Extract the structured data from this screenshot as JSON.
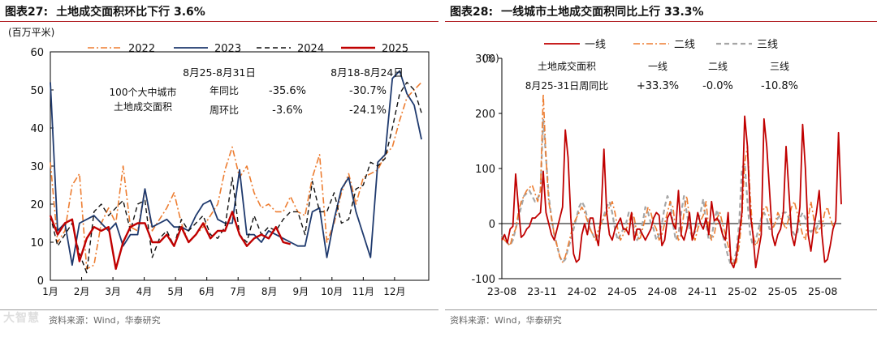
{
  "left": {
    "figure_number": "图表27:",
    "figure_title": "土地成交面积环比下行 3.6%",
    "source": "资料来源：Wind，华泰研究",
    "chart_data": {
      "type": "line",
      "ylabel": "(百万平米)",
      "ylim": [
        0,
        60
      ],
      "yticks": [
        0,
        10,
        20,
        30,
        40,
        50,
        60
      ],
      "xlim": [
        0,
        52
      ],
      "month_labels": [
        "1月",
        "2月",
        "3月",
        "4月",
        "5月",
        "6月",
        "7月",
        "8月",
        "9月",
        "10月",
        "11月",
        "12月"
      ],
      "month_positions": [
        0,
        4.3,
        8.6,
        12.9,
        17.2,
        21.5,
        25.8,
        30.1,
        34.4,
        38.7,
        43,
        47.3
      ],
      "legend": "top",
      "series": [
        {
          "name": "2022",
          "color": "#ED7D31",
          "dash": "dashdot",
          "width": 1.6,
          "x": [
            0,
            1,
            2,
            3,
            4,
            5,
            6,
            7,
            8,
            9,
            10,
            11,
            12,
            13,
            14,
            15,
            16,
            17,
            18,
            19,
            20,
            21,
            22,
            23,
            24,
            25,
            26,
            27,
            28,
            29,
            30,
            31,
            32,
            33,
            34,
            35,
            36,
            37,
            38,
            39,
            40,
            41,
            42,
            43,
            44,
            45,
            46,
            47,
            48,
            49,
            50,
            51
          ],
          "values": [
            31,
            10,
            13,
            25,
            28,
            3,
            4,
            15,
            19,
            15,
            30,
            14,
            13,
            24,
            13,
            16,
            19,
            23,
            15,
            10,
            12,
            14,
            17,
            20,
            29,
            35,
            27,
            30,
            23,
            19,
            20,
            18,
            18,
            22,
            18,
            17,
            27,
            33,
            10,
            15,
            23,
            28,
            20,
            27,
            28,
            29,
            33,
            35,
            42,
            48,
            50,
            52
          ]
        },
        {
          "name": "2023",
          "color": "#1F3A6E",
          "dash": "solid",
          "width": 1.8,
          "x": [
            0,
            1,
            2,
            3,
            4,
            5,
            6,
            7,
            8,
            9,
            10,
            11,
            12,
            13,
            14,
            15,
            16,
            17,
            18,
            19,
            20,
            21,
            22,
            23,
            24,
            25,
            26,
            27,
            28,
            29,
            30,
            31,
            32,
            33,
            34,
            35,
            36,
            37,
            38,
            39,
            40,
            41,
            42,
            43,
            44,
            45,
            46,
            47,
            48,
            49,
            50,
            51
          ],
          "values": [
            52,
            13,
            15,
            4,
            15,
            16,
            17,
            15,
            13,
            15,
            9,
            12,
            12,
            24,
            14,
            15,
            16,
            14,
            14,
            13,
            17,
            20,
            21,
            16,
            15,
            15,
            29,
            12,
            12,
            10,
            13,
            12,
            11,
            10,
            9,
            9,
            18,
            19,
            6,
            16,
            24,
            27,
            18,
            12,
            6,
            31,
            33,
            53,
            55,
            49,
            46,
            37
          ]
        },
        {
          "name": "2024",
          "color": "#111111",
          "dash": "dashed",
          "width": 1.4,
          "x": [
            0,
            1,
            2,
            3,
            4,
            5,
            6,
            7,
            8,
            9,
            10,
            11,
            12,
            13,
            14,
            15,
            16,
            17,
            18,
            19,
            20,
            21,
            22,
            23,
            24,
            25,
            26,
            27,
            28,
            29,
            30,
            31,
            32,
            33,
            34,
            35,
            36,
            37,
            38,
            39,
            40,
            41,
            42,
            43,
            44,
            45,
            46,
            47,
            48,
            49,
            50,
            51
          ],
          "values": [
            17,
            9,
            12,
            15,
            7,
            2,
            18,
            20,
            17,
            19,
            21,
            13,
            20,
            21,
            6,
            11,
            13,
            9,
            16,
            13,
            15,
            17,
            12,
            11,
            14,
            27,
            12,
            10,
            17,
            12,
            14,
            13,
            16,
            18,
            18,
            12,
            26,
            18,
            18,
            23,
            15,
            16,
            24,
            25,
            31,
            30,
            32,
            40,
            49,
            52,
            50,
            44
          ]
        },
        {
          "name": "2025",
          "color": "#C00000",
          "dash": "solid",
          "width": 2.4,
          "x": [
            0,
            1,
            2,
            3,
            4,
            5,
            6,
            7,
            8,
            9,
            10,
            11,
            12,
            13,
            14,
            15,
            16,
            17,
            18,
            19,
            20,
            21,
            22,
            23,
            24,
            25,
            26,
            27,
            28,
            29,
            30,
            31,
            32,
            33
          ],
          "values": [
            17,
            12,
            15,
            16,
            5,
            11,
            14,
            13,
            14,
            3,
            10,
            14,
            15,
            15,
            10,
            10,
            12,
            9,
            14,
            10,
            12,
            15,
            11,
            13,
            13,
            18,
            12,
            9,
            11,
            12,
            11,
            14,
            10,
            9.5
          ]
        }
      ],
      "annotation": {
        "header_1": "8月25-8月31日",
        "header_2": "8月18-8月24日",
        "label_1": "100个大中城市",
        "label_2": "土地成交面积",
        "row1_label": "年同比",
        "row1_v1": "-35.6%",
        "row1_v2": "-30.7%",
        "row2_label": "周环比",
        "row2_v1": "-3.6%",
        "row2_v2": "-24.1%"
      }
    }
  },
  "right": {
    "figure_number": "图表28:",
    "figure_title": "一线城市土地成交面积同比上行 33.3%",
    "source": "资料来源：Wind，华泰研究",
    "chart_data": {
      "type": "line",
      "ylabel": "(%)",
      "ylim": [
        -100,
        300
      ],
      "yticks": [
        -100,
        0,
        100,
        200,
        300
      ],
      "xlim": [
        0,
        110
      ],
      "xtick_labels": [
        "23-08",
        "23-11",
        "24-02",
        "24-05",
        "24-08",
        "24-11",
        "25-02",
        "25-05",
        "25-08"
      ],
      "xtick_positions": [
        0,
        13,
        26,
        39,
        52,
        65,
        78,
        91,
        104
      ],
      "legend": "top",
      "series": [
        {
          "name": "一线",
          "color": "#C00000",
          "dash": "solid",
          "width": 1.8,
          "values": [
            -30,
            -20,
            -35,
            -10,
            -5,
            90,
            30,
            -25,
            -20,
            -10,
            -5,
            10,
            10,
            15,
            20,
            95,
            20,
            0,
            -20,
            -30,
            -10,
            10,
            30,
            170,
            120,
            10,
            -55,
            -70,
            -65,
            -20,
            0,
            -20,
            10,
            10,
            -20,
            -40,
            20,
            135,
            20,
            -20,
            -30,
            -10,
            0,
            10,
            -10,
            -10,
            -20,
            20,
            -30,
            -10,
            -10,
            -20,
            -30,
            -20,
            -10,
            10,
            20,
            15,
            -40,
            -30,
            10,
            20,
            0,
            -10,
            60,
            -20,
            -30,
            -10,
            20,
            -30,
            -10,
            20,
            0,
            -10,
            10,
            -20,
            40,
            5,
            10,
            0,
            -20,
            -30,
            20,
            -70,
            -80,
            -60,
            -20,
            20,
            195,
            140,
            20,
            -20,
            -80,
            -50,
            -20,
            190,
            140,
            60,
            -20,
            -40,
            -20,
            -10,
            20,
            140,
            60,
            -20,
            -40,
            -10,
            30,
            180,
            100,
            -20,
            -50,
            -10,
            20,
            60,
            -20,
            -70,
            -65,
            -40,
            -10,
            5,
            165,
            35
          ]
        },
        {
          "name": "二线",
          "color": "#ED7D31",
          "dash": "dashdot",
          "width": 1.6,
          "values": [
            -25,
            -30,
            -35,
            -40,
            -20,
            -10,
            20,
            40,
            50,
            60,
            65,
            70,
            55,
            40,
            60,
            235,
            120,
            40,
            10,
            -20,
            -40,
            -60,
            -70,
            -60,
            -40,
            -20,
            0,
            10,
            20,
            30,
            20,
            5,
            -10,
            -20,
            -30,
            -10,
            0,
            10,
            20,
            30,
            40,
            20,
            -10,
            -30,
            -20,
            -10,
            0,
            20,
            10,
            -20,
            -30,
            -10,
            10,
            30,
            20,
            0,
            -10,
            -30,
            -20,
            0,
            20,
            40,
            30,
            -10,
            -30,
            -20,
            20,
            50,
            10,
            -20,
            -30,
            -10,
            5,
            15,
            40,
            -10,
            -30,
            -20,
            10,
            20,
            0,
            -20,
            -40,
            -60,
            -75,
            -70,
            -40,
            10,
            110,
            140,
            50,
            -20,
            -40,
            -30,
            0,
            30,
            30,
            10,
            -10,
            0,
            20,
            10,
            0,
            -10,
            10,
            30,
            40,
            20,
            0,
            -20,
            -30,
            10,
            40,
            10,
            -20,
            -10,
            -5,
            20,
            30,
            10,
            -5
          ]
        },
        {
          "name": "三线",
          "color": "#A6A6A6",
          "dash": "dashed",
          "width": 2.2,
          "values": [
            -20,
            -30,
            -35,
            -40,
            -30,
            -10,
            10,
            30,
            50,
            55,
            60,
            50,
            40,
            45,
            60,
            190,
            120,
            50,
            10,
            -20,
            -40,
            -60,
            -70,
            -65,
            -45,
            -30,
            -10,
            10,
            30,
            40,
            30,
            10,
            -10,
            -20,
            -30,
            -20,
            0,
            15,
            30,
            40,
            20,
            -10,
            -30,
            -20,
            -10,
            0,
            20,
            15,
            -10,
            -30,
            -20,
            0,
            30,
            20,
            0,
            -10,
            -30,
            -20,
            0,
            30,
            50,
            40,
            0,
            -30,
            -20,
            20,
            50,
            20,
            -10,
            -25,
            -15,
            5,
            20,
            45,
            0,
            -30,
            -25,
            5,
            25,
            5,
            -20,
            -40,
            -60,
            -75,
            -70,
            -50,
            0,
            100,
            110,
            40,
            -20,
            -40,
            -30,
            -10,
            10,
            20,
            10,
            -10,
            -10,
            0,
            10,
            15,
            20,
            20,
            10,
            -10,
            -20,
            -20,
            10,
            20,
            10,
            -10,
            -15,
            -10,
            -10,
            5,
            0,
            -5
          ]
        }
      ],
      "annotation": {
        "label": "土地成交面积",
        "label_2": "8月25-31日周同比",
        "h1": "一线",
        "h2": "二线",
        "h3": "三线",
        "v1": "+33.3%",
        "v2": "-0.0%",
        "v3": "-10.8%"
      }
    }
  },
  "watermark": "大智慧"
}
